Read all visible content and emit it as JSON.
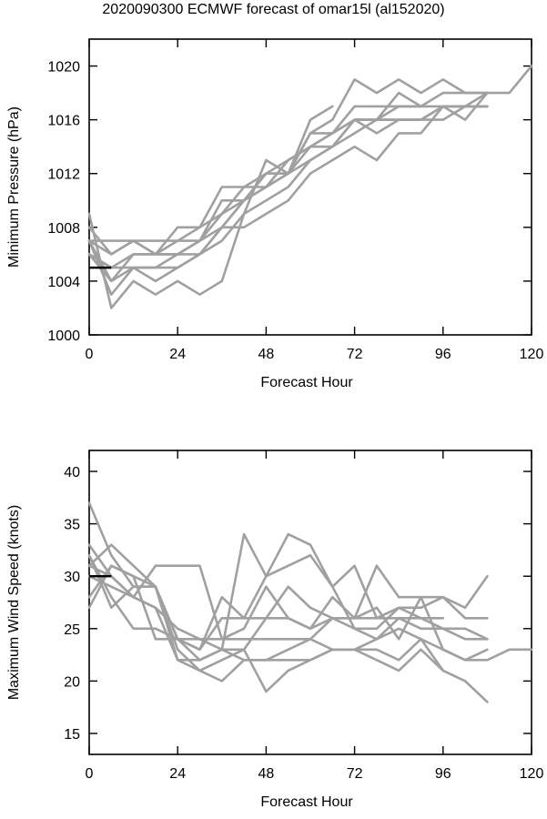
{
  "title": "2020090300 ECMWF forecast of omar15l (al152020)",
  "chart_data": [
    {
      "type": "line",
      "xlabel": "Forecast Hour",
      "ylabel": "Minimum Pressure (hPa)",
      "xlim": [
        0,
        120
      ],
      "ylim": [
        1000,
        1022
      ],
      "xticks": [
        0,
        24,
        48,
        72,
        96,
        120
      ],
      "yticks": [
        1000,
        1004,
        1008,
        1012,
        1016,
        1020
      ],
      "grid": false,
      "colors": {
        "members": "#a0a0a0",
        "observed": "#000000"
      },
      "observed": {
        "x": [
          0,
          6
        ],
        "y": [
          1005,
          1005
        ]
      },
      "series": [
        {
          "x": [
            0,
            6,
            12,
            18,
            24,
            30,
            36,
            42,
            48,
            54,
            60,
            66
          ],
          "y": [
            1009,
            1002,
            1004,
            1003,
            1004,
            1003,
            1004,
            1009,
            1013,
            1012,
            1016,
            1017
          ]
        },
        {
          "x": [
            0,
            6,
            12,
            18,
            24,
            30,
            36,
            42,
            48,
            54,
            60,
            66,
            72,
            78,
            84,
            90,
            96,
            102,
            108
          ],
          "y": [
            1007,
            1007,
            1007,
            1007,
            1007,
            1007,
            1008,
            1010,
            1012,
            1012,
            1015,
            1016,
            1019,
            1018,
            1019,
            1018,
            1019,
            1018,
            1018
          ]
        },
        {
          "x": [
            0,
            6,
            12,
            18,
            24,
            30,
            36,
            42,
            48,
            54,
            60,
            66,
            72,
            78,
            84,
            90,
            96,
            102,
            108
          ],
          "y": [
            1006,
            1005,
            1006,
            1006,
            1008,
            1008,
            1009,
            1011,
            1011,
            1013,
            1014,
            1014,
            1016,
            1016,
            1018,
            1017,
            1018,
            1018,
            1018
          ]
        },
        {
          "x": [
            0,
            6,
            12,
            18,
            24,
            30,
            36,
            42,
            48,
            54,
            60,
            66,
            72,
            78,
            84,
            90,
            96,
            102,
            108
          ],
          "y": [
            1008,
            1006,
            1007,
            1006,
            1007,
            1008,
            1011,
            1011,
            1012,
            1012,
            1015,
            1015,
            1017,
            1017,
            1017,
            1017,
            1017,
            1017,
            1017
          ]
        },
        {
          "x": [
            0,
            6,
            12,
            18,
            24,
            30,
            36,
            42,
            48,
            54,
            60,
            66,
            72,
            78,
            84,
            90,
            96,
            102,
            108
          ],
          "y": [
            1007,
            1004,
            1006,
            1006,
            1006,
            1007,
            1010,
            1010,
            1012,
            1013,
            1014,
            1015,
            1016,
            1016,
            1016,
            1016,
            1017,
            1017,
            1017
          ]
        },
        {
          "x": [
            0,
            6,
            12,
            18,
            24,
            30,
            36,
            42,
            48,
            54,
            60,
            66,
            72,
            78,
            84,
            90,
            96,
            102,
            108
          ],
          "y": [
            1006,
            1004,
            1005,
            1005,
            1006,
            1006,
            1008,
            1010,
            1011,
            1012,
            1013,
            1014,
            1016,
            1015,
            1016,
            1016,
            1016,
            1017,
            1017
          ]
        },
        {
          "x": [
            0,
            6,
            12,
            18,
            24,
            30,
            36,
            42,
            48,
            54,
            60,
            66,
            72,
            78,
            84,
            90,
            96,
            102,
            108,
            114,
            120
          ],
          "y": [
            1006,
            1005,
            1005,
            1005,
            1005,
            1006,
            1007,
            1009,
            1010,
            1011,
            1013,
            1014,
            1015,
            1016,
            1016,
            1016,
            1017,
            1017,
            1018,
            1018,
            1020
          ]
        },
        {
          "x": [
            0,
            6,
            12,
            18,
            24,
            30,
            36,
            42,
            48,
            54,
            60,
            66,
            72,
            78,
            84,
            90,
            96,
            102,
            108
          ],
          "y": [
            1007,
            1003,
            1005,
            1004,
            1005,
            1006,
            1008,
            1008,
            1009,
            1010,
            1012,
            1013,
            1014,
            1013,
            1015,
            1015,
            1017,
            1016,
            1018
          ]
        },
        {
          "x": [
            0,
            6,
            12,
            18,
            24,
            30,
            36,
            42,
            48,
            54,
            60,
            66,
            72,
            78,
            84,
            90
          ],
          "y": [
            1007,
            1006,
            1007,
            1006,
            1006,
            1007,
            1009,
            1010,
            1011,
            1012,
            1014,
            1015,
            1016,
            1016,
            1017,
            1017
          ]
        }
      ]
    },
    {
      "type": "line",
      "xlabel": "Forecast Hour",
      "ylabel": "Maximum Wind Speed (knots)",
      "xlim": [
        0,
        120
      ],
      "ylim": [
        13,
        42
      ],
      "xticks": [
        0,
        24,
        48,
        72,
        96,
        120
      ],
      "yticks": [
        15,
        20,
        25,
        30,
        35,
        40
      ],
      "grid": false,
      "colors": {
        "members": "#a0a0a0",
        "observed": "#000000"
      },
      "observed": {
        "x": [
          0,
          6
        ],
        "y": [
          30,
          30
        ]
      },
      "series": [
        {
          "x": [
            0,
            6,
            12,
            18,
            24,
            30,
            36,
            42,
            48,
            54,
            60,
            66,
            72,
            78,
            84,
            90,
            96,
            102,
            108
          ],
          "y": [
            37,
            32,
            29,
            29,
            24,
            23,
            28,
            26,
            30,
            31,
            32,
            29,
            31,
            26,
            26,
            25,
            25,
            25,
            24
          ]
        },
        {
          "x": [
            0,
            6,
            12,
            18,
            24,
            30,
            36,
            42,
            48,
            54,
            60,
            66,
            72,
            78,
            84,
            90,
            96,
            102,
            108
          ],
          "y": [
            33,
            30,
            28,
            31,
            31,
            31,
            24,
            25,
            29,
            26,
            25,
            28,
            26,
            31,
            28,
            28,
            28,
            27,
            30
          ]
        },
        {
          "x": [
            0,
            6,
            12,
            18,
            24,
            30,
            36,
            42,
            48,
            54,
            60,
            66,
            72,
            78,
            84,
            90,
            96,
            102,
            108
          ],
          "y": [
            31,
            33,
            31,
            29,
            24,
            23,
            26,
            26,
            26,
            26,
            25,
            26,
            26,
            26,
            27,
            26,
            25,
            24,
            24
          ]
        },
        {
          "x": [
            0,
            6,
            12,
            18,
            24,
            30,
            36,
            42,
            48,
            54,
            60,
            66,
            72,
            78,
            84,
            90,
            96,
            102,
            108,
            114,
            120
          ],
          "y": [
            30,
            29,
            28,
            27,
            25,
            24,
            24,
            24,
            24,
            24,
            24,
            23,
            23,
            24,
            25,
            24,
            23,
            22,
            22,
            23,
            23
          ]
        },
        {
          "x": [
            0,
            6,
            12,
            18,
            24,
            30,
            36,
            42,
            48,
            54,
            60,
            66,
            72,
            78,
            84,
            90,
            96,
            102,
            108
          ],
          "y": [
            28,
            31,
            30,
            29,
            23,
            21,
            22,
            23,
            26,
            29,
            27,
            26,
            25,
            25,
            27,
            27,
            28,
            26,
            26
          ]
        },
        {
          "x": [
            0,
            6,
            12,
            18,
            24,
            30,
            36,
            42,
            48,
            54,
            60,
            66,
            72,
            78,
            84,
            90,
            96,
            102,
            108
          ],
          "y": [
            31,
            30,
            28,
            27,
            22,
            21,
            20,
            22,
            22,
            22,
            22,
            23,
            23,
            22,
            21,
            23,
            21,
            20,
            18
          ]
        },
        {
          "x": [
            0,
            6,
            12,
            18,
            24,
            30,
            36,
            42,
            48,
            54,
            60,
            66,
            72,
            78,
            84,
            90,
            96,
            102,
            108
          ],
          "y": [
            27,
            31,
            30,
            24,
            24,
            24,
            23,
            22,
            22,
            23,
            24,
            26,
            26,
            27,
            24,
            28,
            23,
            22,
            23
          ]
        },
        {
          "x": [
            0,
            6,
            12,
            18,
            24,
            30,
            36,
            42,
            48,
            54,
            60,
            66,
            72,
            78,
            84,
            90,
            96
          ],
          "y": [
            32,
            28,
            25,
            25,
            24,
            22,
            23,
            23,
            19,
            21,
            22,
            23,
            23,
            23,
            22,
            24,
            21
          ]
        },
        {
          "x": [
            0,
            6,
            12,
            18,
            24,
            30,
            36,
            42,
            48,
            54,
            60,
            66,
            72,
            78,
            84,
            90,
            96
          ],
          "y": [
            32,
            27,
            29,
            29,
            22,
            22,
            23,
            34,
            30,
            34,
            33,
            29,
            25,
            24,
            26,
            26,
            26
          ]
        }
      ]
    }
  ]
}
